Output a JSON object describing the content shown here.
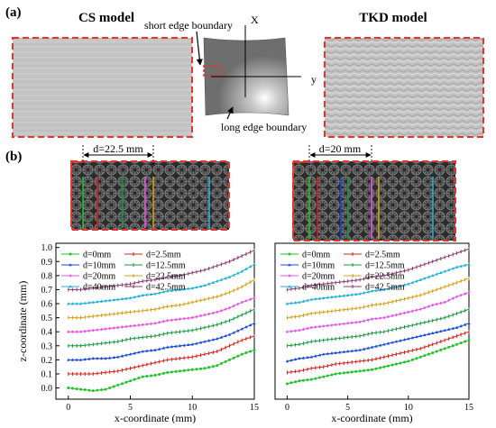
{
  "panel_a": {
    "label": "(a)",
    "left_title": "CS model",
    "right_title": "TKD model",
    "short_edge_label": "short edge boundary",
    "long_edge_label": "long edge boundary",
    "axis_x_label": "X",
    "axis_y_label": "y"
  },
  "panel_b": {
    "label": "(b)",
    "left_dimension": "d=22.5 mm",
    "right_dimension": "d=20 mm"
  },
  "colors": {
    "red_dashed": "#e8332a",
    "d0": "#22c22a",
    "d2_5": "#d9201b",
    "d10": "#1a49d8",
    "d12_5": "#159a3c",
    "d20": "#ea50ea",
    "d22_5": "#d4a011",
    "d40": "#1fb0d8",
    "d42_5": "#8a3b6e"
  },
  "chart_data": [
    {
      "type": "line",
      "xlabel": "x-coordinate (mm)",
      "ylabel": "z-coordinate (mm)",
      "xlim": [
        -1,
        15
      ],
      "ylim": [
        -0.08,
        1.03
      ],
      "xticks": [
        "0",
        "5",
        "10",
        "15"
      ],
      "yticks": [
        "0.0",
        "0.1",
        "0.2",
        "0.3",
        "0.4",
        "0.5",
        "0.6",
        "0.7",
        "0.8",
        "0.9",
        "1.0"
      ],
      "legend": "top-left",
      "grid": false,
      "x": [
        0,
        1,
        2,
        3,
        4,
        5,
        6,
        7,
        8,
        9,
        10,
        11,
        12,
        13,
        14,
        15
      ],
      "series": [
        {
          "name": "d=0mm",
          "color": "#22c22a",
          "marker": "circle",
          "values": [
            0.0,
            -0.01,
            -0.02,
            -0.01,
            0.02,
            0.05,
            0.08,
            0.09,
            0.11,
            0.12,
            0.13,
            0.14,
            0.16,
            0.2,
            0.24,
            0.27
          ]
        },
        {
          "name": "d=2.5mm",
          "color": "#d9201b",
          "marker": "dash",
          "values": [
            0.1,
            0.1,
            0.1,
            0.11,
            0.12,
            0.14,
            0.16,
            0.18,
            0.2,
            0.21,
            0.22,
            0.24,
            0.26,
            0.3,
            0.34,
            0.37
          ]
        },
        {
          "name": "d=10mm",
          "color": "#1a49d8",
          "marker": "triangle",
          "values": [
            0.2,
            0.2,
            0.21,
            0.21,
            0.22,
            0.24,
            0.26,
            0.27,
            0.29,
            0.3,
            0.31,
            0.33,
            0.35,
            0.38,
            0.42,
            0.46
          ]
        },
        {
          "name": "d=12.5mm",
          "color": "#159a3c",
          "marker": "dash",
          "values": [
            0.3,
            0.3,
            0.31,
            0.32,
            0.33,
            0.35,
            0.36,
            0.37,
            0.39,
            0.4,
            0.41,
            0.43,
            0.45,
            0.48,
            0.52,
            0.56
          ]
        },
        {
          "name": "d=20mm",
          "color": "#ea50ea",
          "marker": "diamond",
          "values": [
            0.4,
            0.4,
            0.41,
            0.42,
            0.43,
            0.44,
            0.45,
            0.46,
            0.48,
            0.49,
            0.5,
            0.52,
            0.54,
            0.57,
            0.61,
            0.64
          ]
        },
        {
          "name": "d=22.5mm",
          "color": "#d4a011",
          "marker": "dash",
          "values": [
            0.5,
            0.5,
            0.51,
            0.52,
            0.53,
            0.54,
            0.55,
            0.56,
            0.58,
            0.59,
            0.61,
            0.63,
            0.65,
            0.68,
            0.72,
            0.77
          ]
        },
        {
          "name": "d=40mm",
          "color": "#1fb0d8",
          "marker": "triangle",
          "values": [
            0.6,
            0.6,
            0.61,
            0.62,
            0.63,
            0.64,
            0.66,
            0.67,
            0.69,
            0.7,
            0.71,
            0.73,
            0.76,
            0.79,
            0.83,
            0.88
          ]
        },
        {
          "name": "d=42.5mm",
          "color": "#8a3b6e",
          "marker": "dash",
          "values": [
            0.7,
            0.7,
            0.71,
            0.72,
            0.73,
            0.74,
            0.76,
            0.77,
            0.79,
            0.8,
            0.82,
            0.84,
            0.87,
            0.9,
            0.94,
            0.98
          ]
        }
      ]
    },
    {
      "type": "line",
      "xlabel": "x-coordinate (mm)",
      "ylabel": "",
      "xlim": [
        -1,
        15
      ],
      "ylim": [
        -0.08,
        1.03
      ],
      "xticks": [
        "0",
        "5",
        "10",
        "15"
      ],
      "yticks": [],
      "legend": "top-left",
      "grid": false,
      "x": [
        0,
        1,
        2,
        3,
        4,
        5,
        6,
        7,
        8,
        9,
        10,
        11,
        12,
        13,
        14,
        15
      ],
      "series": [
        {
          "name": "d=0mm",
          "color": "#22c22a",
          "marker": "circle",
          "values": [
            0.03,
            0.05,
            0.06,
            0.08,
            0.1,
            0.11,
            0.12,
            0.13,
            0.15,
            0.17,
            0.19,
            0.22,
            0.25,
            0.28,
            0.31,
            0.34
          ]
        },
        {
          "name": "d=2.5mm",
          "color": "#d9201b",
          "marker": "dash",
          "values": [
            0.11,
            0.12,
            0.14,
            0.15,
            0.17,
            0.18,
            0.19,
            0.2,
            0.22,
            0.24,
            0.26,
            0.28,
            0.31,
            0.34,
            0.37,
            0.4
          ]
        },
        {
          "name": "d=10mm",
          "color": "#1a49d8",
          "marker": "triangle",
          "values": [
            0.19,
            0.21,
            0.22,
            0.24,
            0.25,
            0.26,
            0.27,
            0.29,
            0.31,
            0.33,
            0.35,
            0.37,
            0.39,
            0.41,
            0.43,
            0.46
          ]
        },
        {
          "name": "d=12.5mm",
          "color": "#159a3c",
          "marker": "dash",
          "values": [
            0.3,
            0.31,
            0.33,
            0.34,
            0.35,
            0.36,
            0.37,
            0.39,
            0.4,
            0.42,
            0.44,
            0.46,
            0.48,
            0.5,
            0.53,
            0.56
          ]
        },
        {
          "name": "d=20mm",
          "color": "#ea50ea",
          "marker": "diamond",
          "values": [
            0.4,
            0.41,
            0.43,
            0.44,
            0.45,
            0.46,
            0.47,
            0.49,
            0.5,
            0.52,
            0.54,
            0.56,
            0.59,
            0.61,
            0.65,
            0.68
          ]
        },
        {
          "name": "d=22.5mm",
          "color": "#d4a011",
          "marker": "dash",
          "values": [
            0.5,
            0.51,
            0.53,
            0.54,
            0.55,
            0.56,
            0.57,
            0.59,
            0.6,
            0.62,
            0.64,
            0.66,
            0.69,
            0.72,
            0.75,
            0.78
          ]
        },
        {
          "name": "d=40mm",
          "color": "#1fb0d8",
          "marker": "triangle",
          "values": [
            0.6,
            0.61,
            0.63,
            0.64,
            0.65,
            0.66,
            0.67,
            0.69,
            0.7,
            0.72,
            0.74,
            0.77,
            0.8,
            0.83,
            0.86,
            0.88
          ]
        },
        {
          "name": "d=42.5mm",
          "color": "#8a3b6e",
          "marker": "dash",
          "values": [
            0.7,
            0.71,
            0.73,
            0.74,
            0.75,
            0.76,
            0.77,
            0.79,
            0.8,
            0.82,
            0.84,
            0.87,
            0.9,
            0.93,
            0.96,
            0.99
          ]
        }
      ]
    }
  ]
}
